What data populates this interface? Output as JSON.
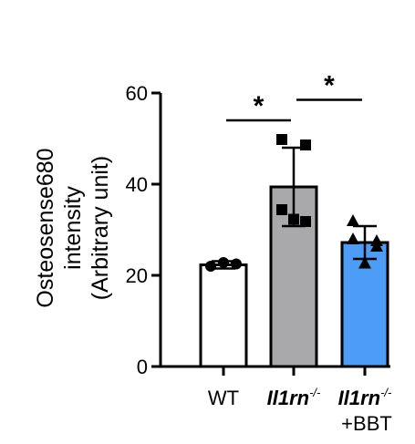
{
  "chart_data": {
    "type": "bar",
    "title": "",
    "ylabel_lines": [
      "Osteosense680",
      "intensity",
      "(Arbitrary unit)"
    ],
    "xlabel": "",
    "ylim": [
      0,
      60
    ],
    "yticks": [
      0,
      20,
      40,
      60
    ],
    "categories": [
      {
        "parts": [
          {
            "text": "WT",
            "style": "normal"
          }
        ],
        "line2": ""
      },
      {
        "parts": [
          {
            "text": "Il1rn",
            "style": "italic"
          },
          {
            "text": "-/-",
            "style": "sup"
          }
        ],
        "line2": ""
      },
      {
        "parts": [
          {
            "text": "Il1rn",
            "style": "italic"
          },
          {
            "text": "-/-",
            "style": "sup"
          }
        ],
        "line2": "+BBT"
      }
    ],
    "values": [
      22.3,
      39.4,
      27.2
    ],
    "error": [
      0.8,
      8.6,
      3.6
    ],
    "points": [
      [
        22.0,
        22.8,
        22.5
      ],
      [
        49.8,
        48.6,
        34.4,
        31.8,
        32.3
      ],
      [
        32.0,
        26.4,
        28.0,
        27.6,
        22.7
      ]
    ],
    "bar_colors": [
      "#ffffff",
      "#a9a9ab",
      "#4d9cf6"
    ],
    "markers": [
      "circle",
      "square",
      "triangle"
    ],
    "significance": [
      {
        "from": 0,
        "to": 1,
        "label": "*"
      },
      {
        "from": 1,
        "to": 2,
        "label": "*"
      }
    ]
  }
}
